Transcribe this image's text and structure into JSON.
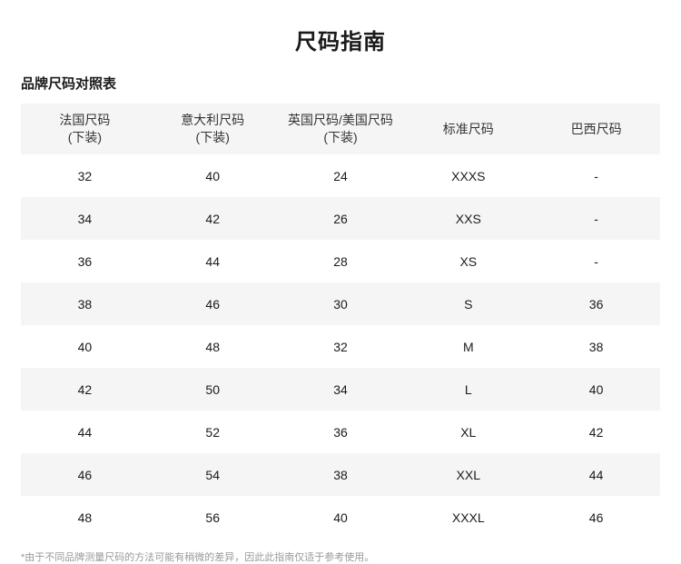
{
  "page": {
    "title": "尺码指南",
    "section_title": "品牌尺码对照表",
    "footnote": "*由于不同品牌测量尺码的方法可能有稍微的差异，因此此指南仅适于参考使用。"
  },
  "table": {
    "headers": [
      {
        "line1": "法国尺码",
        "line2": "(下装)"
      },
      {
        "line1": "意大利尺码",
        "line2": "(下装)"
      },
      {
        "line1": "英国尺码/美国尺码",
        "line2": "(下装)"
      },
      {
        "line1": "标准尺码",
        "line2": ""
      },
      {
        "line1": "巴西尺码",
        "line2": ""
      }
    ],
    "rows": [
      [
        "32",
        "40",
        "24",
        "XXXS",
        "-"
      ],
      [
        "34",
        "42",
        "26",
        "XXS",
        "-"
      ],
      [
        "36",
        "44",
        "28",
        "XS",
        "-"
      ],
      [
        "38",
        "46",
        "30",
        "S",
        "36"
      ],
      [
        "40",
        "48",
        "32",
        "M",
        "38"
      ],
      [
        "42",
        "50",
        "34",
        "L",
        "40"
      ],
      [
        "44",
        "52",
        "36",
        "XL",
        "42"
      ],
      [
        "46",
        "54",
        "38",
        "XXL",
        "44"
      ],
      [
        "48",
        "56",
        "40",
        "XXXL",
        "46"
      ]
    ]
  },
  "colors": {
    "row_alt": "#f5f5f5",
    "footnote_text": "#999999"
  }
}
